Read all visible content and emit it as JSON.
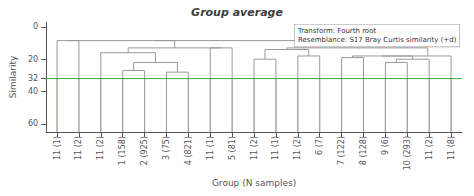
{
  "chart_data": {
    "type": "dendrogram",
    "title": "Group average",
    "xlabel": "Group (N samples)",
    "ylabel": "Similarity",
    "annotation": "Transform: Fourth root\nResemblance: S17 Bray Curtis similarity (+d)",
    "xlim": [
      -0.5,
      18.5
    ],
    "xticks": [
      {
        "value": 0,
        "label": "11 (1)"
      },
      {
        "value": 1,
        "label": "11 (2)"
      },
      {
        "value": 2,
        "label": "11 (2)"
      },
      {
        "value": 3,
        "label": "1 (158)"
      },
      {
        "value": 4,
        "label": "2 (925)"
      },
      {
        "value": 5,
        "label": "3 (75)"
      },
      {
        "value": 6,
        "label": "4 (821)"
      },
      {
        "value": 7,
        "label": "11 (1)"
      },
      {
        "value": 8,
        "label": "5 (81)"
      },
      {
        "value": 9,
        "label": "11 (2)"
      },
      {
        "value": 10,
        "label": "11 (1)"
      },
      {
        "value": 11,
        "label": "11 (2)"
      },
      {
        "value": 12,
        "label": "6 (7)"
      },
      {
        "value": 13,
        "label": "7 (122)"
      },
      {
        "value": 14,
        "label": "8 (128)"
      },
      {
        "value": 15,
        "label": "9 (6)"
      },
      {
        "value": 16,
        "label": "10 (293)"
      },
      {
        "value": 17,
        "label": "11 (2)"
      },
      {
        "value": 18,
        "label": "11 (8)"
      }
    ],
    "ylim": [
      65,
      -3
    ],
    "yticks": [
      0,
      20,
      32,
      40,
      60
    ],
    "grid": false,
    "series": [
      {
        "type": "vlines",
        "color": "#88cc88",
        "values": [
          65,
          32
        ]
      },
      {
        "type": "dendrogram",
        "color": "#999999",
        "values": [
          [
            0,
            1,
            8.5,
            65,
            65
          ],
          [
            3,
            4,
            27,
            65,
            65
          ],
          [
            5,
            6,
            28,
            65,
            65
          ],
          [
            3.5,
            5.5,
            22,
            27,
            28
          ],
          [
            2,
            4.5,
            16,
            65,
            22
          ],
          [
            7,
            8,
            13,
            65,
            65
          ],
          [
            3.25,
            7.5,
            13,
            16,
            13
          ],
          [
            0.5,
            5.375,
            8.5,
            8.5,
            13
          ],
          [
            9,
            10,
            20,
            65,
            65
          ],
          [
            11,
            12,
            18,
            65,
            65
          ],
          [
            9.5,
            11.5,
            14,
            20,
            18
          ],
          [
            13,
            14,
            19,
            65,
            65
          ],
          [
            15,
            16,
            22,
            65,
            65
          ],
          [
            15.5,
            17,
            20,
            22,
            65
          ],
          [
            13.5,
            16.25,
            18,
            19,
            20
          ],
          [
            14.875,
            18,
            18,
            18,
            65
          ],
          [
            10.5,
            16.9375,
            13,
            14,
            18
          ],
          [
            4.4375,
            13.71875,
            8.5,
            8.5,
            13
          ]
        ]
      },
      {
        "type": "hline",
        "color": "#44aa44",
        "values": [
          32
        ]
      }
    ]
  }
}
